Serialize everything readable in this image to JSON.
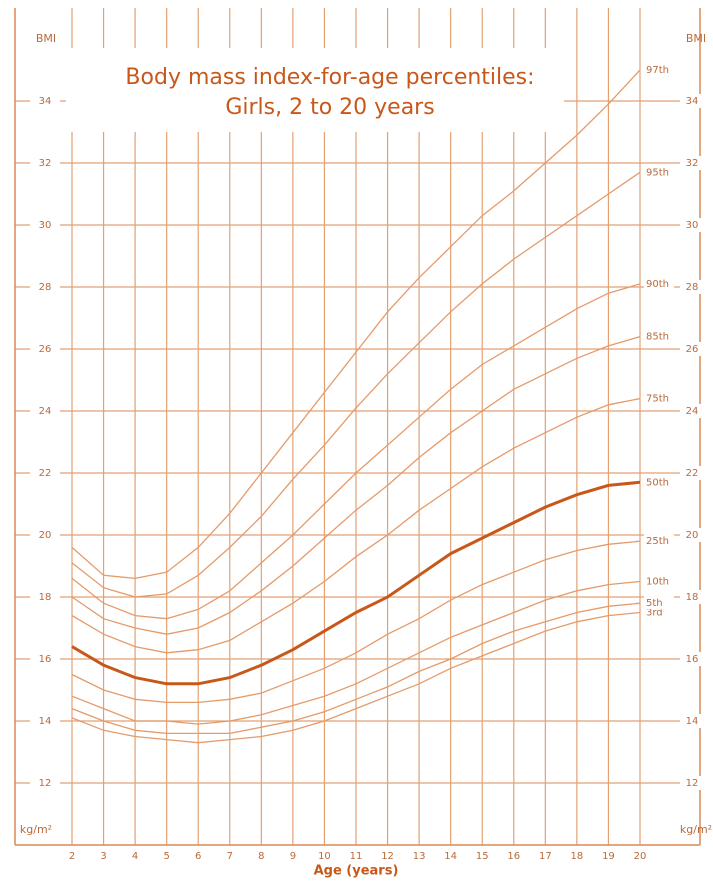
{
  "chart_data": {
    "type": "line",
    "title": "Body mass index-for-age percentiles:",
    "subtitle": "Girls, 2 to 20 years",
    "x_label": "Age (years)",
    "y_label": "BMI",
    "y_unit": "kg/m²",
    "x": [
      2,
      3,
      4,
      5,
      6,
      7,
      8,
      9,
      10,
      11,
      12,
      13,
      14,
      15,
      16,
      17,
      18,
      19,
      20
    ],
    "xlim": [
      2,
      20
    ],
    "xticks": [
      2,
      3,
      4,
      5,
      6,
      7,
      8,
      9,
      10,
      11,
      12,
      13,
      14,
      15,
      16,
      17,
      18,
      19,
      20
    ],
    "ylim": [
      10,
      37
    ],
    "yticks": [
      12,
      14,
      16,
      18,
      20,
      22,
      24,
      26,
      28,
      30,
      32,
      34
    ],
    "grid": true,
    "series": [
      {
        "name": "3rd",
        "color": "#e59a6a",
        "width": 1.3,
        "values": [
          14.1,
          13.7,
          13.5,
          13.4,
          13.3,
          13.4,
          13.5,
          13.7,
          14.0,
          14.4,
          14.8,
          15.2,
          15.7,
          16.1,
          16.5,
          16.9,
          17.2,
          17.4,
          17.5
        ]
      },
      {
        "name": "5th",
        "color": "#e59a6a",
        "width": 1.3,
        "values": [
          14.4,
          14.0,
          13.7,
          13.6,
          13.6,
          13.6,
          13.8,
          14.0,
          14.3,
          14.7,
          15.1,
          15.6,
          16.0,
          16.5,
          16.9,
          17.2,
          17.5,
          17.7,
          17.8
        ]
      },
      {
        "name": "10th",
        "color": "#e59a6a",
        "width": 1.3,
        "values": [
          14.8,
          14.4,
          14.0,
          14.0,
          13.9,
          14.0,
          14.2,
          14.5,
          14.8,
          15.2,
          15.7,
          16.2,
          16.7,
          17.1,
          17.5,
          17.9,
          18.2,
          18.4,
          18.5
        ]
      },
      {
        "name": "25th",
        "color": "#e59a6a",
        "width": 1.3,
        "values": [
          15.5,
          15.0,
          14.7,
          14.6,
          14.6,
          14.7,
          14.9,
          15.3,
          15.7,
          16.2,
          16.8,
          17.3,
          17.9,
          18.4,
          18.8,
          19.2,
          19.5,
          19.7,
          19.8
        ]
      },
      {
        "name": "50th",
        "color": "#c8581a",
        "width": 3,
        "values": [
          16.4,
          15.8,
          15.4,
          15.2,
          15.2,
          15.4,
          15.8,
          16.3,
          16.9,
          17.5,
          18.0,
          18.7,
          19.4,
          19.9,
          20.4,
          20.9,
          21.3,
          21.6,
          21.7
        ]
      },
      {
        "name": "75th",
        "color": "#e59a6a",
        "width": 1.3,
        "values": [
          17.4,
          16.8,
          16.4,
          16.2,
          16.3,
          16.6,
          17.2,
          17.8,
          18.5,
          19.3,
          20.0,
          20.8,
          21.5,
          22.2,
          22.8,
          23.3,
          23.8,
          24.2,
          24.4
        ]
      },
      {
        "name": "85th",
        "color": "#e59a6a",
        "width": 1.3,
        "values": [
          18.0,
          17.3,
          17.0,
          16.8,
          17.0,
          17.5,
          18.2,
          19.0,
          19.9,
          20.8,
          21.6,
          22.5,
          23.3,
          24.0,
          24.7,
          25.2,
          25.7,
          26.1,
          26.4
        ]
      },
      {
        "name": "90th",
        "color": "#e59a6a",
        "width": 1.3,
        "values": [
          18.6,
          17.8,
          17.4,
          17.3,
          17.6,
          18.2,
          19.1,
          20.0,
          21.0,
          22.0,
          22.9,
          23.8,
          24.7,
          25.5,
          26.1,
          26.7,
          27.3,
          27.8,
          28.1
        ]
      },
      {
        "name": "95th",
        "color": "#e59a6a",
        "width": 1.3,
        "values": [
          19.1,
          18.3,
          18.0,
          18.1,
          18.7,
          19.6,
          20.6,
          21.8,
          22.9,
          24.1,
          25.2,
          26.2,
          27.2,
          28.1,
          28.9,
          29.6,
          30.3,
          31.0,
          31.7
        ]
      },
      {
        "name": "97th",
        "color": "#e59a6a",
        "width": 1.3,
        "values": [
          19.6,
          18.7,
          18.6,
          18.8,
          19.6,
          20.7,
          22.0,
          23.3,
          24.6,
          25.9,
          27.2,
          28.3,
          29.3,
          30.3,
          31.1,
          32.0,
          32.9,
          33.9,
          35.0
        ]
      }
    ]
  }
}
